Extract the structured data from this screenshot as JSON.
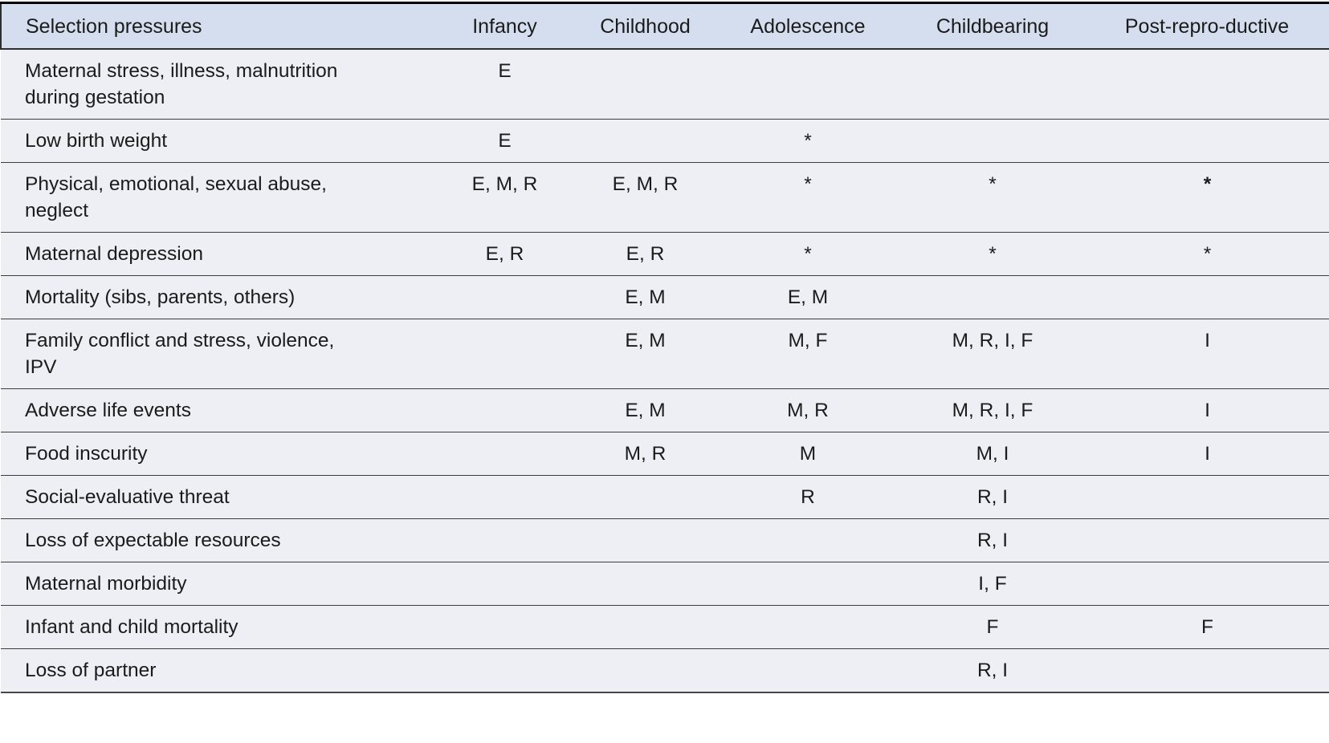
{
  "table": {
    "columns": [
      "Selection pressures",
      "Infancy",
      "Childhood",
      "Adolescence",
      "Childbearing",
      "Post-repro-ductive"
    ],
    "rows": [
      {
        "label": "Maternal stress, illness, malnutrition\nduring gestation",
        "cells": [
          "E",
          "",
          "",
          "",
          ""
        ],
        "bold_cells": []
      },
      {
        "label": "Low birth weight",
        "cells": [
          "E",
          "",
          "*",
          "",
          ""
        ],
        "bold_cells": []
      },
      {
        "label": "Physical, emotional, sexual abuse,\nneglect",
        "cells": [
          "E, M, R",
          "E, M, R",
          "*",
          "*",
          "*"
        ],
        "bold_cells": [
          4
        ]
      },
      {
        "label": "Maternal depression",
        "cells": [
          "E, R",
          "E, R",
          "*",
          "*",
          "*"
        ],
        "bold_cells": []
      },
      {
        "label": "Mortality (sibs, parents, others)",
        "cells": [
          "",
          "E, M",
          "E, M",
          "",
          ""
        ],
        "bold_cells": []
      },
      {
        "label": "Family conflict and stress, violence,\nIPV",
        "cells": [
          "",
          "E, M",
          "M, F",
          "M, R, I, F",
          "I"
        ],
        "bold_cells": []
      },
      {
        "label": "Adverse life events",
        "cells": [
          "",
          "E, M",
          "M, R",
          "M, R, I, F",
          "I"
        ],
        "bold_cells": []
      },
      {
        "label": "Food inscurity",
        "cells": [
          "",
          "M, R",
          "M",
          "M, I",
          "I"
        ],
        "bold_cells": []
      },
      {
        "label": "Social-evaluative threat",
        "cells": [
          "",
          "",
          "R",
          "R, I",
          ""
        ],
        "bold_cells": []
      },
      {
        "label": "Loss of expectable resources",
        "cells": [
          "",
          "",
          "",
          "R, I",
          ""
        ],
        "bold_cells": []
      },
      {
        "label": "Maternal morbidity",
        "cells": [
          "",
          "",
          "",
          "I, F",
          ""
        ],
        "bold_cells": []
      },
      {
        "label": "Infant and child mortality",
        "cells": [
          "",
          "",
          "",
          "F",
          "F"
        ],
        "bold_cells": []
      },
      {
        "label": "Loss of partner",
        "cells": [
          "",
          "",
          "",
          "R, I",
          ""
        ],
        "bold_cells": []
      }
    ]
  },
  "colors": {
    "header_bg": "#d5deee",
    "body_bg": "#edeff4",
    "top_border": "#000000",
    "separator": "#3d3d3d",
    "text": "#1b1b1b"
  }
}
